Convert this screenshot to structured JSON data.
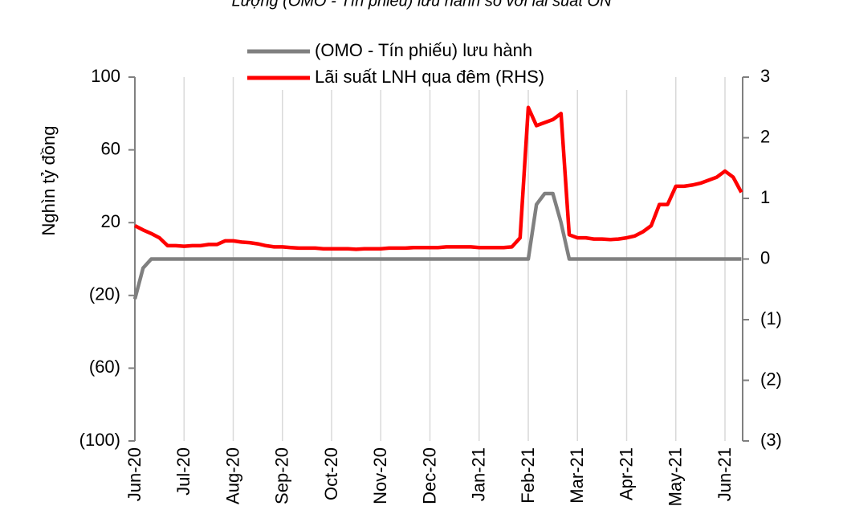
{
  "chart_data": {
    "type": "line",
    "title": "Lượng (OMO - Tín phiếu) lưu hành so với lãi suất ON",
    "y_label": "Nghìn tỷ đồng",
    "categories": [
      "Jun-20",
      null,
      null,
      null,
      null,
      null,
      "Jul-20",
      null,
      null,
      null,
      null,
      null,
      "Aug-20",
      null,
      null,
      null,
      null,
      null,
      "Sep-20",
      null,
      null,
      null,
      null,
      null,
      "Oct-20",
      null,
      null,
      null,
      null,
      null,
      "Nov-20",
      null,
      null,
      null,
      null,
      null,
      "Dec-20",
      null,
      null,
      null,
      null,
      null,
      "Jan-21",
      null,
      null,
      null,
      null,
      null,
      "Feb-21",
      null,
      null,
      null,
      null,
      null,
      "Mar-21",
      null,
      null,
      null,
      null,
      null,
      "Apr-21",
      null,
      null,
      null,
      null,
      null,
      "May-21",
      null,
      null,
      null,
      null,
      null,
      "Jun-21",
      null,
      null
    ],
    "series": [
      {
        "name": "(OMO - Tín phiếu) lưu hành",
        "color": "#808080",
        "axis": "y",
        "values": [
          -22,
          -5,
          0,
          0,
          0,
          0,
          0,
          0,
          0,
          0,
          0,
          0,
          0,
          0,
          0,
          0,
          0,
          0,
          0,
          0,
          0,
          0,
          0,
          0,
          0,
          0,
          0,
          0,
          0,
          0,
          0,
          0,
          0,
          0,
          0,
          0,
          0,
          0,
          0,
          0,
          0,
          0,
          0,
          0,
          0,
          0,
          0,
          0,
          0,
          30,
          36,
          36,
          20,
          0,
          0,
          0,
          0,
          0,
          0,
          0,
          0,
          0,
          0,
          0,
          0,
          0,
          0,
          0,
          0,
          0,
          0,
          0,
          0,
          0,
          0
        ]
      },
      {
        "name": "Lãi suất LNH qua đêm (RHS)",
        "color": "#ff0000",
        "axis": "y2",
        "values": [
          0.55,
          0.48,
          0.42,
          0.35,
          0.22,
          0.22,
          0.21,
          0.22,
          0.22,
          0.24,
          0.24,
          0.3,
          0.3,
          0.28,
          0.27,
          0.25,
          0.22,
          0.2,
          0.2,
          0.19,
          0.18,
          0.18,
          0.18,
          0.17,
          0.17,
          0.17,
          0.17,
          0.16,
          0.17,
          0.17,
          0.17,
          0.18,
          0.18,
          0.18,
          0.19,
          0.19,
          0.19,
          0.19,
          0.2,
          0.2,
          0.2,
          0.2,
          0.19,
          0.19,
          0.19,
          0.19,
          0.2,
          0.35,
          2.5,
          2.2,
          2.25,
          2.3,
          2.4,
          0.4,
          0.35,
          0.35,
          0.33,
          0.33,
          0.32,
          0.33,
          0.35,
          0.38,
          0.45,
          0.55,
          0.9,
          0.9,
          1.2,
          1.2,
          1.22,
          1.25,
          1.3,
          1.35,
          1.45,
          1.35,
          1.1
        ]
      }
    ],
    "ylim": [
      -100,
      100
    ],
    "yticks": [
      {
        "value": -100,
        "label": "(100)"
      },
      {
        "value": -60,
        "label": "(60)"
      },
      {
        "value": -20,
        "label": "(20)"
      },
      20,
      60,
      100
    ],
    "y2lim": [
      -3,
      3
    ],
    "y2ticks": [
      {
        "value": -3,
        "label": "(3)"
      },
      {
        "value": -2,
        "label": "(2)"
      },
      {
        "value": -1,
        "label": "(1)"
      },
      0,
      1,
      2,
      3
    ],
    "grid": true
  }
}
